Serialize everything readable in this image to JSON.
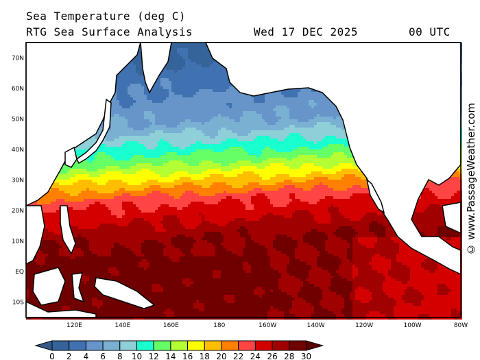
{
  "header": {
    "title": "Sea Temperature (deg C)",
    "subtitle": "RTG Sea Surface Analysis",
    "date": "Wed 17 DEC 2025",
    "time": "00 UTC"
  },
  "watermark": "© www.PassageWeather.com",
  "map": {
    "lat_labels": [
      "70N",
      "60N",
      "50N",
      "40N",
      "30N",
      "20N",
      "10N",
      "EQ",
      "10S"
    ],
    "lat_values": [
      70,
      60,
      50,
      40,
      30,
      20,
      10,
      0,
      -10
    ],
    "lon_labels": [
      "120E",
      "140E",
      "160E",
      "180",
      "160W",
      "140W",
      "120W",
      "100W",
      "80W"
    ],
    "lon_values": [
      120,
      140,
      160,
      180,
      200,
      220,
      240,
      260,
      280
    ],
    "extent": {
      "lon": [
        100,
        280
      ],
      "lat": [
        -15,
        75
      ]
    }
  },
  "colorbar": {
    "levels": [
      "0",
      "2",
      "4",
      "6",
      "8",
      "10",
      "12",
      "14",
      "16",
      "18",
      "20",
      "22",
      "24",
      "26",
      "28",
      "30"
    ],
    "colors": [
      "#35649a",
      "#4071b0",
      "#6795c9",
      "#7ab0d2",
      "#8ecfd8",
      "#1affd0",
      "#66ff66",
      "#b3ff33",
      "#ffff00",
      "#ffbf00",
      "#ff8000",
      "#ff4444",
      "#d40000",
      "#a00000",
      "#700000"
    ],
    "under_color": "#345a88",
    "over_color": "#5c0000"
  }
}
